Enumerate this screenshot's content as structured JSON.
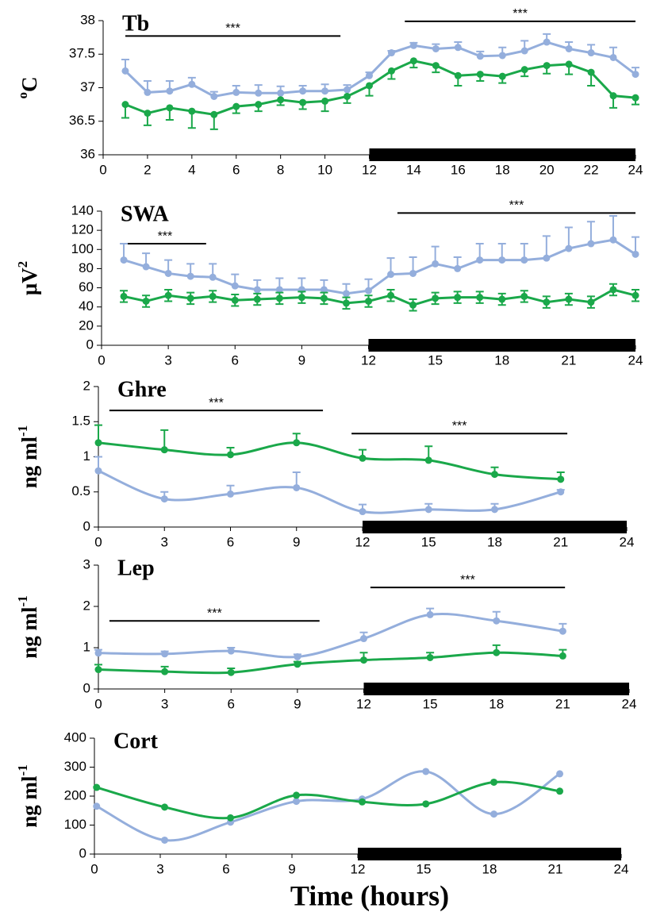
{
  "chart_data": [
    {
      "type": "line",
      "title": "Tb",
      "ylabel": [
        {
          "text": "o",
          "script": "super"
        },
        {
          "text": "C"
        }
      ],
      "x": [
        1,
        2,
        3,
        4,
        5,
        6,
        7,
        8,
        9,
        10,
        11,
        12,
        13,
        14,
        15,
        16,
        17,
        18,
        19,
        20,
        21,
        22,
        23,
        24
      ],
      "xlim": [
        0,
        24
      ],
      "xticks": [
        0,
        2,
        4,
        6,
        8,
        10,
        12,
        14,
        16,
        18,
        20,
        22,
        24
      ],
      "ylim": [
        36,
        38
      ],
      "yticks": [
        36,
        36.5,
        37,
        37.5,
        38
      ],
      "smooth": false,
      "series": [
        {
          "color": "#94aedc",
          "error_direction": "up",
          "values": [
            37.25,
            36.93,
            36.95,
            37.05,
            36.87,
            36.93,
            36.92,
            36.92,
            36.95,
            36.95,
            36.97,
            37.18,
            37.52,
            37.63,
            37.58,
            37.6,
            37.47,
            37.48,
            37.55,
            37.68,
            37.58,
            37.52,
            37.45,
            37.2
          ],
          "errors": [
            0.17,
            0.17,
            0.15,
            0.1,
            0.07,
            0.1,
            0.12,
            0.1,
            0.08,
            0.1,
            0.07,
            0.05,
            0.03,
            0.04,
            0.07,
            0.08,
            0.07,
            0.12,
            0.15,
            0.12,
            0.1,
            0.12,
            0.15,
            0.1
          ]
        },
        {
          "color": "#1aa84a",
          "error_direction": "down",
          "values": [
            36.75,
            36.62,
            36.7,
            36.65,
            36.6,
            36.72,
            36.75,
            36.82,
            36.78,
            36.8,
            36.87,
            37.03,
            37.25,
            37.4,
            37.33,
            37.18,
            37.2,
            37.17,
            37.27,
            37.33,
            37.35,
            37.23,
            36.88,
            36.85
          ],
          "errors": [
            0.2,
            0.18,
            0.18,
            0.25,
            0.22,
            0.1,
            0.1,
            0.08,
            0.1,
            0.15,
            0.1,
            0.15,
            0.12,
            0.1,
            0.1,
            0.15,
            0.1,
            0.1,
            0.1,
            0.12,
            0.15,
            0.2,
            0.18,
            0.1
          ]
        }
      ],
      "significance": [
        {
          "label": "***",
          "x": [
            1,
            10.7
          ],
          "y": 37.77
        },
        {
          "label": "***",
          "x": [
            13.6,
            24
          ],
          "y": 37.99
        }
      ],
      "dark_period": [
        12,
        24
      ]
    },
    {
      "type": "line",
      "title": "SWA",
      "ylabel": [
        {
          "text": "μV"
        },
        {
          "text": "2",
          "script": "super"
        }
      ],
      "x": [
        1,
        2,
        3,
        4,
        5,
        6,
        7,
        8,
        9,
        10,
        11,
        12,
        13,
        14,
        15,
        16,
        17,
        18,
        19,
        20,
        21,
        22,
        23,
        24
      ],
      "xlim": [
        0,
        24
      ],
      "xticks": [
        0,
        3,
        6,
        9,
        12,
        15,
        18,
        21,
        24
      ],
      "ylim": [
        0,
        140
      ],
      "yticks": [
        0,
        20,
        40,
        60,
        80,
        100,
        120,
        140
      ],
      "smooth": false,
      "series": [
        {
          "color": "#94aedc",
          "error_direction": "up",
          "values": [
            89,
            82,
            75,
            72,
            71,
            62,
            58,
            58,
            58,
            58,
            54,
            57,
            74,
            75,
            85,
            80,
            89,
            89,
            89,
            91,
            101,
            106,
            110,
            95
          ],
          "errors": [
            17,
            14,
            14,
            13,
            14,
            12,
            10,
            12,
            12,
            10,
            10,
            12,
            17,
            17,
            18,
            12,
            17,
            17,
            17,
            23,
            22,
            23,
            25,
            18
          ]
        },
        {
          "color": "#1aa84a",
          "error_direction": "both",
          "values": [
            51,
            46,
            52,
            49,
            51,
            47,
            48,
            49,
            50,
            49,
            44,
            46,
            52,
            42,
            49,
            50,
            50,
            48,
            51,
            45,
            48,
            45,
            58,
            52
          ],
          "errors": [
            6,
            6,
            6,
            6,
            6,
            6,
            6,
            6,
            6,
            6,
            6,
            6,
            6,
            6,
            6,
            6,
            6,
            6,
            6,
            6,
            6,
            6,
            6,
            6
          ]
        }
      ],
      "significance": [
        {
          "label": "***",
          "x": [
            1,
            4.7
          ],
          "y": 106
        },
        {
          "label": "***",
          "x": [
            13.3,
            24
          ],
          "y": 138
        }
      ],
      "dark_period": [
        12,
        24
      ]
    },
    {
      "type": "line",
      "title": "Ghre",
      "ylabel": [
        {
          "text": "ng ml"
        },
        {
          "text": "-1",
          "script": "super"
        }
      ],
      "x": [
        0,
        3,
        6,
        9,
        12,
        15,
        18,
        21
      ],
      "xlim": [
        0,
        24
      ],
      "xticks": [
        0,
        3,
        6,
        9,
        12,
        15,
        18,
        21,
        24
      ],
      "ylim": [
        0,
        2
      ],
      "yticks": [
        0,
        0.5,
        1,
        1.5,
        2
      ],
      "smooth": true,
      "series": [
        {
          "color": "#94aedc",
          "error_direction": "up",
          "values": [
            0.8,
            0.4,
            0.47,
            0.56,
            0.22,
            0.25,
            0.25,
            0.5
          ],
          "errors": [
            0.2,
            0.1,
            0.12,
            0.22,
            0.1,
            0.08,
            0.08,
            0.03
          ]
        },
        {
          "color": "#1aa84a",
          "error_direction": "up",
          "values": [
            1.2,
            1.1,
            1.03,
            1.2,
            0.98,
            0.95,
            0.75,
            0.68
          ],
          "errors": [
            0.25,
            0.28,
            0.1,
            0.13,
            0.12,
            0.2,
            0.1,
            0.1
          ]
        }
      ],
      "significance": [
        {
          "label": "***",
          "x": [
            0.5,
            10.2
          ],
          "y": 1.66
        },
        {
          "label": "***",
          "x": [
            11.5,
            21.3
          ],
          "y": 1.33
        }
      ],
      "dark_period": [
        12,
        24
      ]
    },
    {
      "type": "line",
      "title": "Lep",
      "ylabel": [
        {
          "text": "ng ml"
        },
        {
          "text": "-1",
          "script": "super"
        }
      ],
      "x": [
        0,
        3,
        6,
        9,
        12,
        15,
        18,
        21
      ],
      "xlim": [
        0,
        24
      ],
      "xticks": [
        0,
        3,
        6,
        9,
        12,
        15,
        18,
        21,
        24
      ],
      "ylim": [
        0,
        3
      ],
      "yticks": [
        0,
        1,
        2,
        3
      ],
      "smooth": true,
      "series": [
        {
          "color": "#94aedc",
          "error_direction": "up",
          "values": [
            0.87,
            0.85,
            0.92,
            0.78,
            1.22,
            1.8,
            1.65,
            1.4
          ],
          "errors": [
            0.08,
            0.06,
            0.08,
            0.06,
            0.15,
            0.15,
            0.22,
            0.18
          ]
        },
        {
          "color": "#1aa84a",
          "error_direction": "up",
          "values": [
            0.47,
            0.42,
            0.4,
            0.6,
            0.7,
            0.76,
            0.88,
            0.8
          ],
          "errors": [
            0.12,
            0.12,
            0.1,
            0.06,
            0.18,
            0.12,
            0.18,
            0.15
          ]
        }
      ],
      "significance": [
        {
          "label": "***",
          "x": [
            0.5,
            10
          ],
          "y": 1.65
        },
        {
          "label": "***",
          "x": [
            12.3,
            21.1
          ],
          "y": 2.46
        }
      ],
      "dark_period": [
        12,
        24
      ]
    },
    {
      "type": "line",
      "title": "Cort",
      "ylabel": [
        {
          "text": "ng ml"
        },
        {
          "text": "-1",
          "script": "super"
        }
      ],
      "xlabel": "Time (hours)",
      "x": [
        0.1,
        3.2,
        6.2,
        9.2,
        12.2,
        15.1,
        18.2,
        21.2
      ],
      "xlim": [
        0,
        24
      ],
      "xticks": [
        0,
        3,
        6,
        9,
        12,
        15,
        18,
        21,
        24
      ],
      "ylim": [
        0,
        400
      ],
      "yticks": [
        0,
        100,
        200,
        300,
        400
      ],
      "smooth": true,
      "series": [
        {
          "color": "#94aedc",
          "values": [
            165,
            48,
            110,
            182,
            190,
            285,
            138,
            277
          ]
        },
        {
          "color": "#1aa84a",
          "values": [
            230,
            162,
            125,
            203,
            180,
            173,
            248,
            217
          ]
        }
      ],
      "significance": [],
      "dark_period": [
        12,
        24
      ]
    }
  ]
}
